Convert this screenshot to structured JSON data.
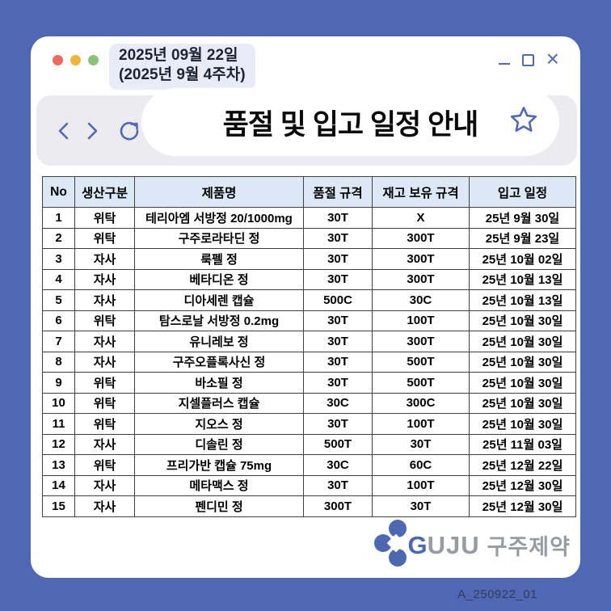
{
  "titlebar": {
    "date_line1": "2025년 09월 22일",
    "date_line2": "(2025년 9월 4주차)",
    "close_glyph": "×"
  },
  "navbar": {
    "title": "품절 및 입고 일정 안내"
  },
  "table": {
    "headers": [
      "No",
      "생산구분",
      "제품명",
      "품절 규격",
      "재고 보유 규격",
      "입고 일정"
    ],
    "rows": [
      [
        "1",
        "위탁",
        "테리아엠 서방정 20/1000mg",
        "30T",
        "X",
        "25년 9월 30일"
      ],
      [
        "2",
        "위탁",
        "구주로라타딘 정",
        "30T",
        "300T",
        "25년 9월 23일"
      ],
      [
        "3",
        "자사",
        "룩펠 정",
        "30T",
        "300T",
        "25년 10월 02일"
      ],
      [
        "4",
        "자사",
        "베타디온 정",
        "30T",
        "300T",
        "25년 10월 13일"
      ],
      [
        "5",
        "자사",
        "디아세렌 캡슐",
        "500C",
        "30C",
        "25년 10월 13일"
      ],
      [
        "6",
        "위탁",
        "탐스로날 서방정 0.2mg",
        "30T",
        "100T",
        "25년 10월 30일"
      ],
      [
        "7",
        "자사",
        "유니레보 정",
        "30T",
        "300T",
        "25년 10월 30일"
      ],
      [
        "8",
        "자사",
        "구주오플록사신 정",
        "30T",
        "500T",
        "25년 10월 30일"
      ],
      [
        "9",
        "위탁",
        "바소필 정",
        "30T",
        "500T",
        "25년 10월 30일"
      ],
      [
        "10",
        "위탁",
        "지셀플러스 캡슐",
        "30C",
        "300C",
        "25년 10월 30일"
      ],
      [
        "11",
        "위탁",
        "지오스 정",
        "30T",
        "100T",
        "25년 10월 30일"
      ],
      [
        "12",
        "자사",
        "디솔린 정",
        "500T",
        "30T",
        "25년 11월 03일"
      ],
      [
        "13",
        "위탁",
        "프리가반 캡슐 75mg",
        "30C",
        "60C",
        "25년 12월 22일"
      ],
      [
        "14",
        "자사",
        "메타맥스 정",
        "30T",
        "100T",
        "25년 12월 30일"
      ],
      [
        "15",
        "자사",
        "펜디민 정",
        "300T",
        "30T",
        "25년 12월 30일"
      ]
    ]
  },
  "footer": {
    "logo_g": "G",
    "logo_uju": "UJU",
    "logo_kr": "구주제약",
    "doc_code": "A_250922_01"
  },
  "colors": {
    "bg": "#5068b4",
    "accent": "#5168b2",
    "navbar": "#ebebf0",
    "badge": "#e9ebf7",
    "table-header": "#dce8f5",
    "border": "#404040",
    "light-red": "#ed6a5e",
    "light-yellow": "#f0b43c",
    "light-green": "#8cc379",
    "logo-gray": "#979ca3",
    "logo-blue": "#4c68b0",
    "doc-code": "#333c59"
  }
}
